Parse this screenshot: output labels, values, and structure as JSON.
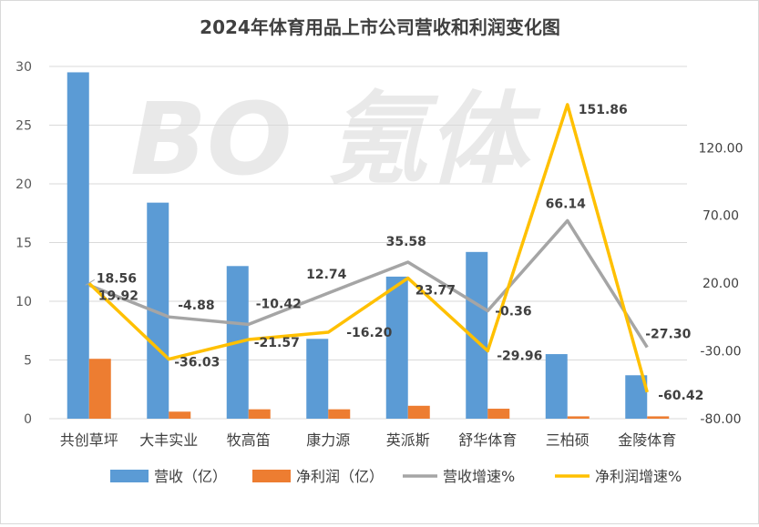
{
  "chart_data": {
    "type": "bar",
    "title": "2024年体育用品上市公司营收和利润变化图",
    "watermark": "BO 氪体",
    "categories": [
      "共创草坪",
      "大丰实业",
      "牧高笛",
      "康力源",
      "英派斯",
      "舒华体育",
      "三柏硕",
      "金陵体育"
    ],
    "left_axis": {
      "min": 0,
      "max": 30,
      "ticks": [
        "0",
        "5",
        "10",
        "15",
        "20",
        "25",
        "30"
      ]
    },
    "right_axis": {
      "min": -80,
      "max": 180,
      "ticks": [
        "-80.00",
        "-30.00",
        "20.00",
        "70.00",
        "120.00"
      ]
    },
    "grid": true,
    "legend_position": "bottom",
    "series": [
      {
        "name": "营收（亿）",
        "type": "bar",
        "axis": "left",
        "color": "#5b9bd5",
        "values": [
          29.5,
          18.4,
          13.0,
          6.8,
          12.1,
          14.2,
          5.5,
          3.7
        ]
      },
      {
        "name": "净利润（亿）",
        "type": "bar",
        "axis": "left",
        "color": "#ed7d31",
        "values": [
          5.1,
          0.6,
          0.8,
          0.8,
          1.1,
          0.85,
          0.2,
          0.2
        ]
      },
      {
        "name": "营收增速%",
        "type": "line",
        "axis": "right",
        "color": "#a5a5a5",
        "values": [
          18.56,
          -4.88,
          -10.42,
          12.74,
          35.58,
          -0.36,
          66.14,
          -27.3
        ],
        "labels": [
          "18.56",
          "-4.88",
          "-10.42",
          "12.74",
          "35.58",
          "-0.36",
          "66.14",
          "-27.30"
        ]
      },
      {
        "name": "净利润增速%",
        "type": "line",
        "axis": "right",
        "color": "#ffc000",
        "values": [
          19.92,
          -36.03,
          -21.57,
          -16.2,
          23.77,
          -29.96,
          151.86,
          -60.42
        ],
        "labels": [
          "19.92",
          "-36.03",
          "-21.57",
          "-16.20",
          "23.77",
          "-29.96",
          "151.86",
          "-60.42"
        ]
      }
    ]
  }
}
